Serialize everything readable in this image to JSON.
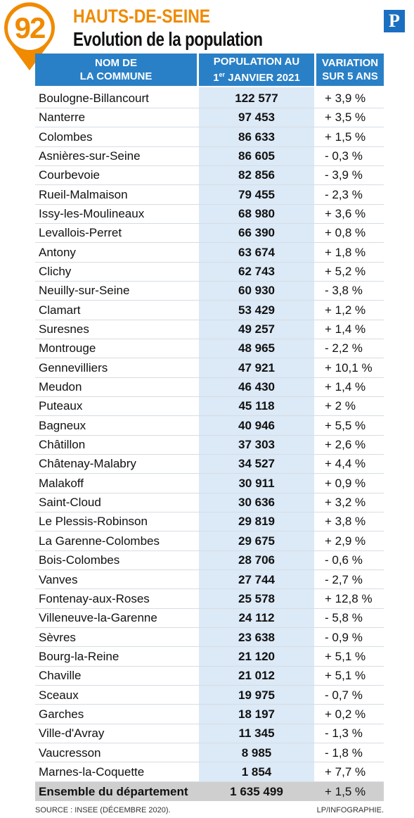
{
  "header": {
    "badge": "92",
    "title": "HAUTS-DE-SEINE",
    "subtitle": "Evolution de la population",
    "logo": "P"
  },
  "table": {
    "columns": [
      [
        "NOM DE",
        "LA COMMUNE"
      ],
      [
        "POPULATION AU",
        "1",
        "er",
        "JANVIER 2021"
      ],
      [
        "VARIATION",
        "SUR 5 ANS"
      ]
    ],
    "rows": [
      [
        "Boulogne-Billancourt",
        "122 577",
        "+ 3,9 %"
      ],
      [
        "Nanterre",
        "97 453",
        "+ 3,5 %"
      ],
      [
        "Colombes",
        "86 633",
        "+ 1,5 %"
      ],
      [
        "Asnières-sur-Seine",
        "86 605",
        "- 0,3 %"
      ],
      [
        "Courbevoie",
        "82 856",
        "- 3,9 %"
      ],
      [
        "Rueil-Malmaison",
        "79 455",
        "- 2,3 %"
      ],
      [
        "Issy-les-Moulineaux",
        "68 980",
        "+ 3,6 %"
      ],
      [
        "Levallois-Perret",
        "66 390",
        "+ 0,8 %"
      ],
      [
        "Antony",
        "63 674",
        "+ 1,8 %"
      ],
      [
        "Clichy",
        "62 743",
        "+ 5,2 %"
      ],
      [
        "Neuilly-sur-Seine",
        "60 930",
        "- 3,8 %"
      ],
      [
        "Clamart",
        "53 429",
        "+ 1,2 %"
      ],
      [
        "Suresnes",
        "49 257",
        "+ 1,4 %"
      ],
      [
        "Montrouge",
        "48 965",
        "- 2,2 %"
      ],
      [
        "Gennevilliers",
        "47 921",
        "+ 10,1 %"
      ],
      [
        "Meudon",
        "46 430",
        "+ 1,4 %"
      ],
      [
        "Puteaux",
        "45 118",
        "+ 2 %"
      ],
      [
        "Bagneux",
        "40 946",
        "+ 5,5 %"
      ],
      [
        "Châtillon",
        "37 303",
        "+ 2,6 %"
      ],
      [
        "Châtenay-Malabry",
        "34 527",
        "+ 4,4 %"
      ],
      [
        "Malakoff",
        "30 911",
        "+ 0,9 %"
      ],
      [
        "Saint-Cloud",
        "30 636",
        "+ 3,2 %"
      ],
      [
        "Le Plessis-Robinson",
        "29 819",
        "+ 3,8 %"
      ],
      [
        "La Garenne-Colombes",
        "29 675",
        "+ 2,9 %"
      ],
      [
        "Bois-Colombes",
        "28 706",
        "- 0,6 %"
      ],
      [
        "Vanves",
        "27 744",
        "- 2,7 %"
      ],
      [
        "Fontenay-aux-Roses",
        "25 578",
        "+ 12,8 %"
      ],
      [
        "Villeneuve-la-Garenne",
        "24 112",
        "- 5,8 %"
      ],
      [
        "Sèvres",
        "23 638",
        "- 0,9 %"
      ],
      [
        "Bourg-la-Reine",
        "21 120",
        "+ 5,1 %"
      ],
      [
        "Chaville",
        "21 012",
        "+ 5,1 %"
      ],
      [
        "Sceaux",
        "19 975",
        "- 0,7 %"
      ],
      [
        "Garches",
        "18 197",
        "+ 0,2 %"
      ],
      [
        "Ville-d'Avray",
        "11 345",
        "- 1,3 %"
      ],
      [
        "Vaucresson",
        "8 985",
        "- 1,8 %"
      ],
      [
        "Marnes-la-Coquette",
        "1 854",
        "+ 7,7 %"
      ]
    ],
    "total": [
      "Ensemble du département",
      "1 635 499",
      "+ 1,5 %"
    ]
  },
  "footer": {
    "source": "SOURCE : INSEE (DÉCEMBRE 2020).",
    "credit": "LP/INFOGRAPHIE."
  }
}
